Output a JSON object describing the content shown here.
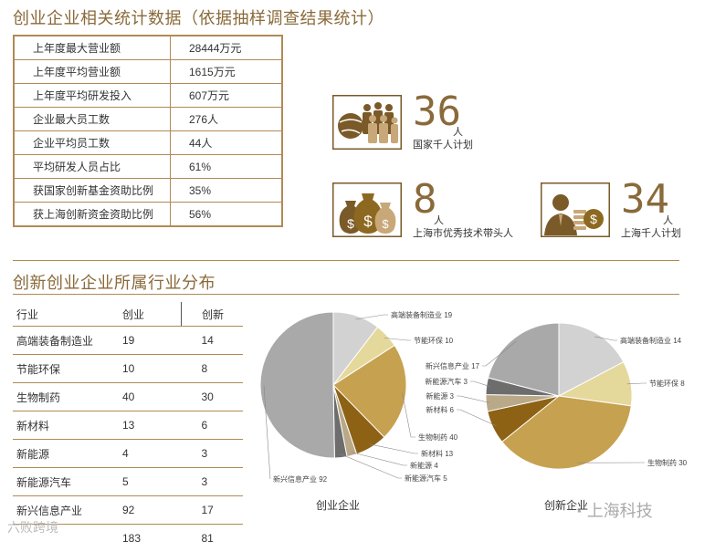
{
  "section1_title": "创业企业相关统计数据（依据抽样调查结果统计）",
  "stats": [
    {
      "label": "上年度最大营业额",
      "value": "28444万元"
    },
    {
      "label": "上年度平均营业额",
      "value": "1615万元"
    },
    {
      "label": "上年度平均研发投入",
      "value": "607万元"
    },
    {
      "label": "企业最大员工数",
      "value": "276人"
    },
    {
      "label": "企业平均员工数",
      "value": "44人"
    },
    {
      "label": "平均研发人员占比",
      "value": "61%"
    },
    {
      "label": "获国家创新基金资助比例",
      "value": "35%"
    },
    {
      "label": "获上海创新资金资助比例",
      "value": "56%"
    }
  ],
  "talents": [
    {
      "number": "36",
      "unit": "人",
      "caption": "国家千人计划",
      "icon": "people-group-icon"
    },
    {
      "number": "8",
      "unit": "人",
      "caption": "上海市优秀技术带头人",
      "icon": "money-bags-icon"
    },
    {
      "number": "34",
      "unit": "人",
      "caption": "上海千人计划",
      "icon": "businessman-coins-icon"
    }
  ],
  "section2_title": "创新创业企业所属行业分布",
  "industry_table": {
    "headers": [
      "行业",
      "创业",
      "创新"
    ],
    "rows": [
      [
        "高端装备制造业",
        "19",
        "14"
      ],
      [
        "节能环保",
        "10",
        "8"
      ],
      [
        "生物制药",
        "40",
        "30"
      ],
      [
        "新材料",
        "13",
        "6"
      ],
      [
        "新能源",
        "4",
        "3"
      ],
      [
        "新能源汽车",
        "5",
        "3"
      ],
      [
        "新兴信息产业",
        "92",
        "17"
      ]
    ],
    "totals": [
      "",
      "183",
      "81"
    ]
  },
  "watermarks": {
    "left": "六败跨境",
    "right": "上海科技"
  },
  "chart_data": [
    {
      "type": "pie",
      "title": "创业企业",
      "slices": [
        {
          "label": "高端装备制造业",
          "value": 19,
          "display": "高端装备制造业 19",
          "color": "#d2d2d2"
        },
        {
          "label": "节能环保",
          "value": 10,
          "display": "节能环保 10",
          "color": "#e5d89b"
        },
        {
          "label": "生物制药",
          "value": 40,
          "display": "生物制药 40",
          "color": "#c6a14f"
        },
        {
          "label": "新材料",
          "value": 13,
          "display": "新材料 13",
          "color": "#8d6215"
        },
        {
          "label": "新能源",
          "value": 4,
          "display": "新能源 4",
          "color": "#b9a989"
        },
        {
          "label": "新能源汽车",
          "value": 5,
          "display": "新能源汽车 5",
          "color": "#6d6d6d"
        },
        {
          "label": "新兴信息产业",
          "value": 92,
          "display": "新兴信息产业 92",
          "color": "#a9a9a9"
        }
      ]
    },
    {
      "type": "pie",
      "title": "创新企业",
      "slices": [
        {
          "label": "高端装备制造业",
          "value": 14,
          "display": "高端装备制造业 14",
          "color": "#d2d2d2"
        },
        {
          "label": "节能环保",
          "value": 8,
          "display": "节能环保 8",
          "color": "#e5d89b"
        },
        {
          "label": "生物制药",
          "value": 30,
          "display": "生物制药 30",
          "color": "#c6a14f"
        },
        {
          "label": "新材料",
          "value": 6,
          "display": "新材料 6",
          "color": "#8d6215"
        },
        {
          "label": "新能源",
          "value": 3,
          "display": "新能源 3",
          "color": "#b9a989"
        },
        {
          "label": "新能源汽车",
          "value": 3,
          "display": "新能源汽车 3",
          "color": "#6d6d6d"
        },
        {
          "label": "新兴信息产业",
          "value": 17,
          "display": "新兴信息产业 17",
          "color": "#a9a9a9"
        }
      ]
    }
  ]
}
